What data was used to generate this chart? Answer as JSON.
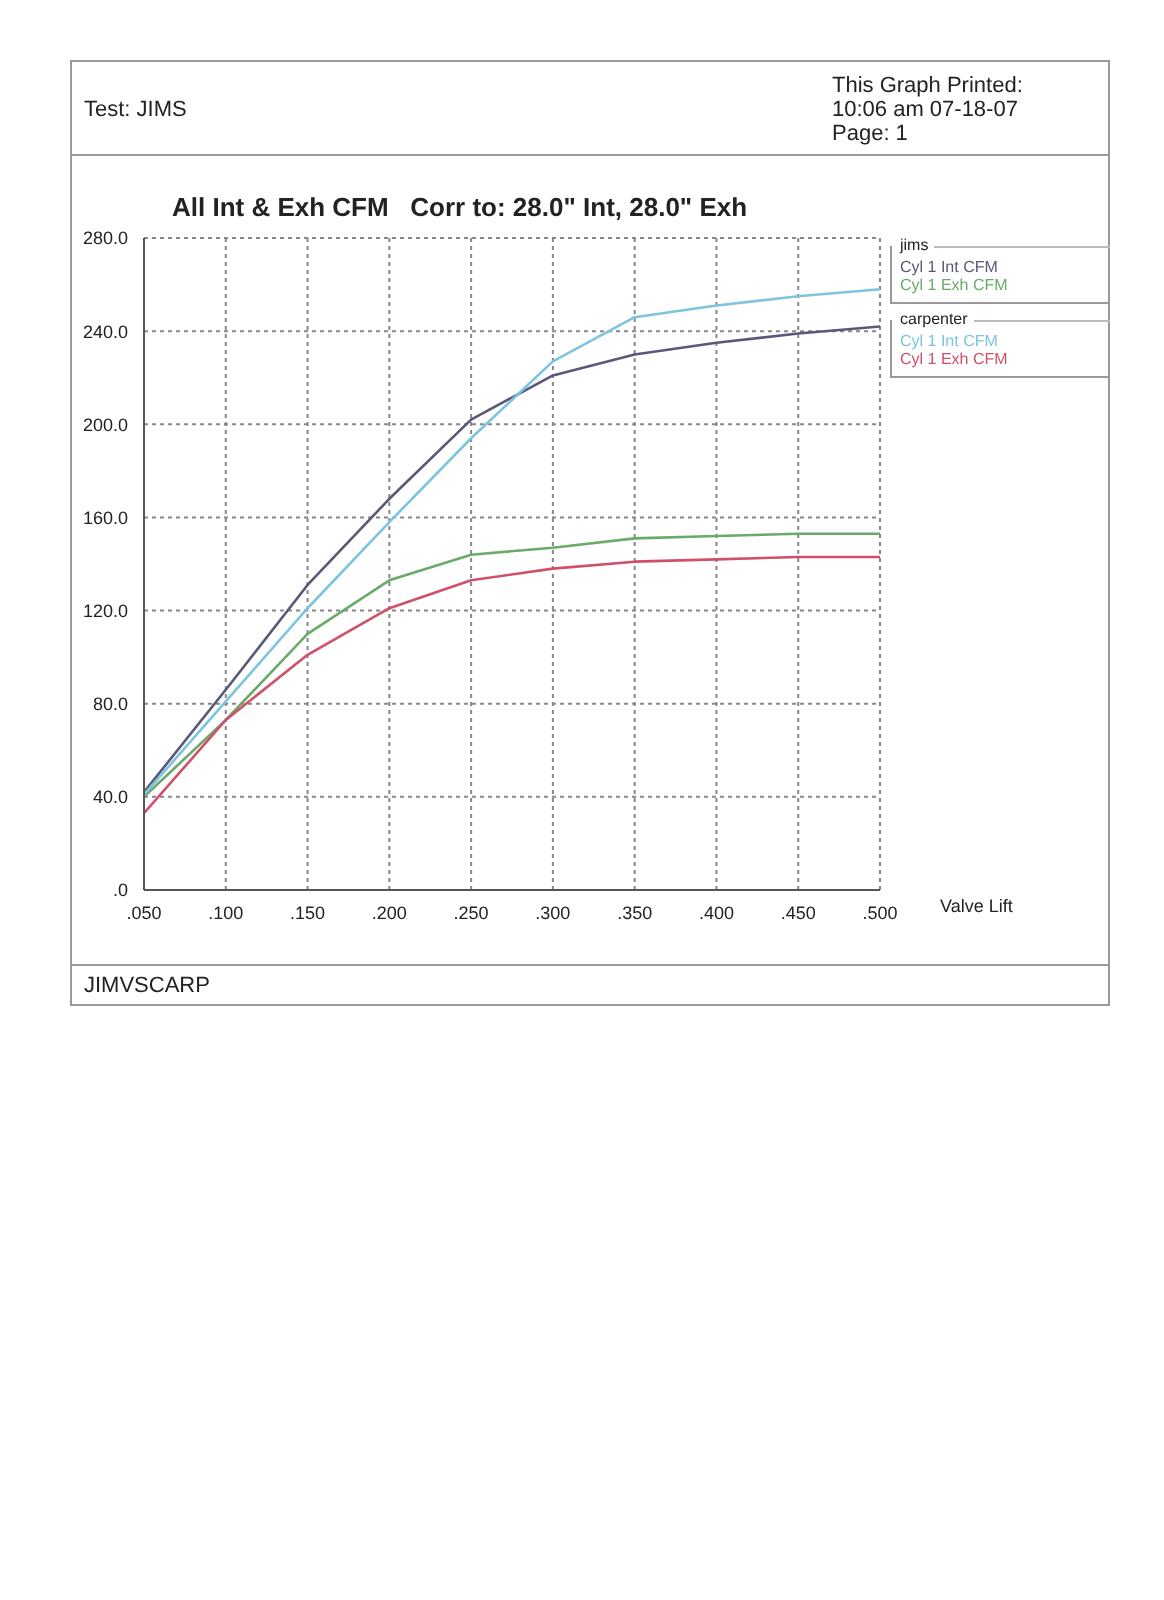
{
  "chart_data": {
    "type": "line",
    "title": "All Int & Exh CFM   Corr to: 28.0\" Int, 28.0\" Exh",
    "xlabel": "Valve Lift",
    "x": [
      0.05,
      0.1,
      0.15,
      0.2,
      0.25,
      0.3,
      0.35,
      0.4,
      0.45,
      0.5
    ],
    "xlim": [
      0.05,
      0.5
    ],
    "xticks": [
      {
        "value": 0.05,
        "label": ".050"
      },
      {
        "value": 0.1,
        "label": ".100"
      },
      {
        "value": 0.15,
        "label": ".150"
      },
      {
        "value": 0.2,
        "label": ".200"
      },
      {
        "value": 0.25,
        "label": ".250"
      },
      {
        "value": 0.3,
        "label": ".300"
      },
      {
        "value": 0.35,
        "label": ".350"
      },
      {
        "value": 0.4,
        "label": ".400"
      },
      {
        "value": 0.45,
        "label": ".450"
      },
      {
        "value": 0.5,
        "label": ".500"
      }
    ],
    "ylim": [
      0,
      280
    ],
    "yticks": [
      {
        "value": 0,
        "label": ".0"
      },
      {
        "value": 40,
        "label": "40.0"
      },
      {
        "value": 80,
        "label": "80.0"
      },
      {
        "value": 120,
        "label": "120.0"
      },
      {
        "value": 160,
        "label": "160.0"
      },
      {
        "value": 200,
        "label": "200.0"
      },
      {
        "value": 240,
        "label": "240.0"
      },
      {
        "value": 280,
        "label": "280.0"
      }
    ],
    "series": [
      {
        "name": "Cyl 1 Int CFM",
        "color": "#5a5878",
        "values": [
          42,
          86,
          131,
          168,
          202,
          221,
          230,
          235,
          239,
          242
        ]
      },
      {
        "name": "Cyl 1 Exh CFM",
        "color": "#6aaa6a",
        "values": [
          40,
          73,
          110,
          133,
          144,
          147,
          151,
          152,
          153,
          153
        ]
      },
      {
        "name": "Cyl 1 Int CFM",
        "color": "#7cc4e0",
        "values": [
          41,
          81,
          121,
          158,
          194,
          227,
          246,
          251,
          255,
          258
        ]
      },
      {
        "name": "Cyl 1 Exh CFM",
        "color": "#d0506a",
        "values": [
          33,
          73,
          101,
          121,
          133,
          138,
          141,
          142,
          143,
          143
        ]
      }
    ],
    "annotations": [
      "jims",
      "carpenter",
      "Test: JIMS",
      "This Graph Printed:",
      "10:06 am 07-18-07",
      "Page: 1",
      "JIMVSCARP"
    ],
    "grid": true,
    "legend": "right",
    "marker": "none",
    "line_style": "solid"
  }
}
